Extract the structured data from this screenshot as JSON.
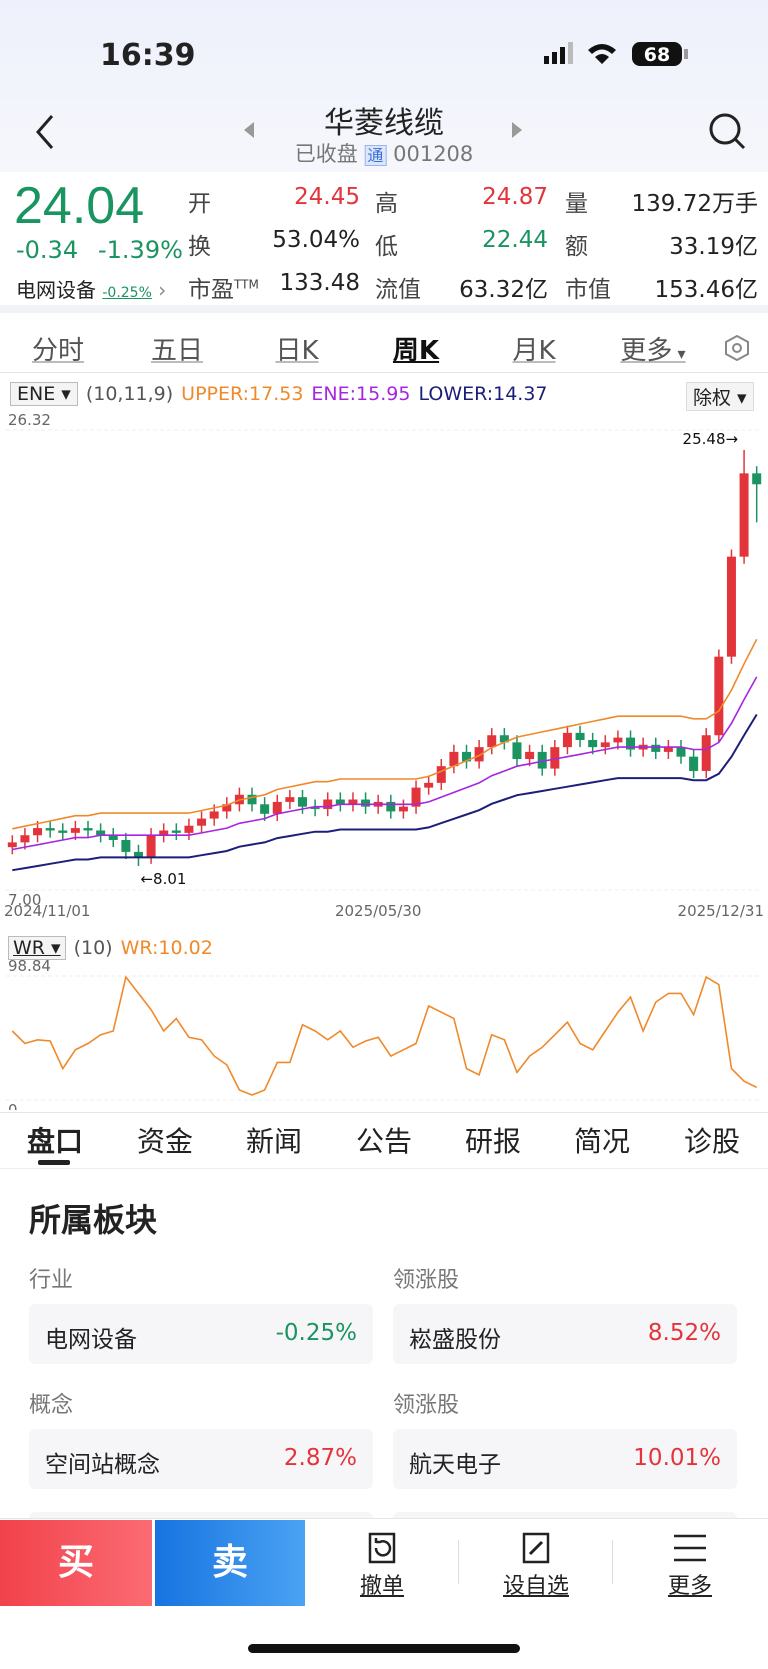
{
  "status_bar": {
    "time": "16:39",
    "battery": "68"
  },
  "header": {
    "title": "华菱线缆",
    "status": "已收盘",
    "badge": "通",
    "code": "001208"
  },
  "quote": {
    "price": "24.04",
    "change": "-0.34",
    "change_pct": "-1.39%",
    "sector": "电网设备",
    "sector_change": "-0.25%",
    "fields": [
      {
        "label": "开",
        "value": "24.45",
        "color": "#e2353b"
      },
      {
        "label": "高",
        "value": "24.87",
        "color": "#e2353b"
      },
      {
        "label": "量",
        "value": "139.72万手",
        "color": "#222"
      },
      {
        "label": "换",
        "value": "53.04%",
        "color": "#222"
      },
      {
        "label": "低",
        "value": "22.44",
        "color": "#1a9460"
      },
      {
        "label": "额",
        "value": "33.19亿",
        "color": "#222"
      },
      {
        "label": "市盈",
        "sup": "TTM",
        "value": "133.48",
        "color": "#222"
      },
      {
        "label": "流值",
        "value": "63.32亿",
        "color": "#222"
      },
      {
        "label": "市值",
        "value": "153.46亿",
        "color": "#222"
      }
    ]
  },
  "period_tabs": [
    "分时",
    "五日",
    "日K",
    "周K",
    "月K",
    "更多"
  ],
  "chart_data": [
    {
      "type": "candlestick",
      "indicator": "ENE",
      "params": "(10,11,9)",
      "adjust": "除权",
      "up_color": "#e2353b",
      "down_color": "#1a9460",
      "categories": [
        "2024/11/01",
        null,
        null,
        null,
        null,
        null,
        null,
        null,
        null,
        null,
        null,
        null,
        null,
        null,
        null,
        null,
        null,
        null,
        null,
        null,
        null,
        null,
        null,
        null,
        null,
        null,
        null,
        null,
        null,
        "2025/05/30",
        null,
        null,
        null,
        null,
        null,
        null,
        null,
        null,
        null,
        null,
        null,
        null,
        null,
        null,
        null,
        null,
        null,
        null,
        null,
        null,
        null,
        null,
        null,
        null,
        null,
        null,
        null,
        null,
        null,
        "2025/12/31"
      ],
      "open": [
        8.8,
        9.0,
        9.3,
        9.6,
        9.5,
        9.4,
        9.6,
        9.5,
        9.3,
        9.1,
        8.6,
        8.4,
        9.3,
        9.5,
        9.4,
        9.7,
        10.0,
        10.3,
        10.6,
        11.0,
        10.6,
        10.2,
        10.7,
        10.9,
        10.5,
        10.4,
        10.8,
        10.6,
        10.8,
        10.5,
        10.7,
        10.3,
        10.5,
        11.3,
        11.5,
        12.2,
        12.8,
        12.4,
        13.0,
        13.5,
        13.2,
        12.5,
        12.8,
        12.1,
        13.0,
        13.6,
        13.3,
        13.0,
        13.2,
        13.4,
        12.9,
        13.1,
        12.8,
        13.0,
        12.6,
        12.0,
        13.5,
        16.8,
        21.0,
        24.5
      ],
      "close": [
        9.0,
        9.3,
        9.6,
        9.5,
        9.4,
        9.6,
        9.5,
        9.3,
        9.1,
        8.6,
        8.4,
        9.3,
        9.5,
        9.4,
        9.7,
        10.0,
        10.3,
        10.6,
        11.0,
        10.6,
        10.2,
        10.7,
        10.9,
        10.5,
        10.4,
        10.8,
        10.6,
        10.8,
        10.5,
        10.7,
        10.3,
        10.5,
        11.3,
        11.5,
        12.2,
        12.8,
        12.4,
        13.0,
        13.5,
        13.2,
        12.5,
        12.8,
        12.1,
        13.0,
        13.6,
        13.3,
        13.0,
        13.2,
        13.4,
        12.9,
        13.1,
        12.8,
        13.0,
        12.6,
        12.0,
        13.5,
        16.8,
        21.0,
        24.5,
        24.04
      ],
      "high": [
        9.3,
        9.6,
        9.9,
        9.9,
        9.8,
        9.9,
        9.9,
        9.8,
        9.6,
        9.4,
        8.9,
        9.6,
        9.8,
        9.8,
        10.0,
        10.3,
        10.6,
        10.9,
        11.3,
        11.3,
        10.9,
        11.0,
        11.2,
        11.2,
        10.8,
        11.1,
        11.1,
        11.1,
        11.1,
        11.0,
        11.0,
        10.8,
        11.6,
        11.8,
        12.5,
        13.1,
        13.1,
        13.3,
        13.8,
        13.8,
        13.5,
        13.1,
        13.1,
        13.3,
        13.9,
        13.9,
        13.6,
        13.5,
        13.7,
        13.7,
        13.4,
        13.4,
        13.3,
        13.3,
        12.9,
        13.8,
        17.1,
        21.3,
        25.48,
        24.8
      ],
      "low": [
        8.5,
        8.7,
        9.0,
        9.2,
        9.1,
        9.1,
        9.2,
        9.0,
        8.8,
        8.3,
        8.01,
        8.1,
        9.0,
        9.1,
        9.1,
        9.4,
        9.7,
        10.0,
        10.3,
        10.3,
        9.9,
        9.9,
        10.4,
        10.2,
        10.1,
        10.1,
        10.3,
        10.3,
        10.2,
        10.2,
        10.0,
        10.0,
        10.2,
        11.0,
        11.2,
        11.9,
        12.1,
        12.1,
        12.7,
        12.9,
        12.2,
        12.2,
        11.8,
        11.8,
        12.7,
        13.0,
        12.7,
        12.7,
        12.9,
        12.6,
        12.6,
        12.5,
        12.5,
        12.3,
        11.7,
        11.7,
        13.2,
        16.5,
        20.7,
        22.44
      ],
      "series": [
        {
          "name": "UPPER:17.53",
          "color": "#f0892a",
          "values": [
            9.57,
            9.68,
            9.79,
            9.9,
            10.01,
            10.12,
            10.12,
            10.23,
            10.23,
            10.23,
            10.23,
            10.23,
            10.23,
            10.23,
            10.23,
            10.34,
            10.45,
            10.56,
            10.78,
            10.89,
            11,
            11.22,
            11.33,
            11.44,
            11.55,
            11.55,
            11.66,
            11.66,
            11.66,
            11.66,
            11.66,
            11.66,
            11.66,
            11.77,
            11.99,
            12.21,
            12.43,
            12.65,
            12.98,
            13.2,
            13.42,
            13.53,
            13.64,
            13.75,
            13.86,
            13.97,
            14.08,
            14.19,
            14.3,
            14.3,
            14.3,
            14.3,
            14.3,
            14.3,
            14.19,
            14.19,
            14.52,
            15.4,
            16.5,
            17.53
          ]
        },
        {
          "name": "ENE:15.95",
          "color": "#a626e0",
          "values": [
            8.7,
            8.8,
            8.9,
            9.0,
            9.1,
            9.2,
            9.2,
            9.3,
            9.3,
            9.3,
            9.3,
            9.3,
            9.3,
            9.3,
            9.3,
            9.4,
            9.5,
            9.6,
            9.8,
            9.9,
            10.0,
            10.2,
            10.3,
            10.4,
            10.5,
            10.5,
            10.6,
            10.6,
            10.6,
            10.6,
            10.6,
            10.6,
            10.6,
            10.7,
            10.9,
            11.1,
            11.3,
            11.5,
            11.8,
            12.0,
            12.2,
            12.3,
            12.4,
            12.5,
            12.6,
            12.7,
            12.8,
            12.9,
            13.0,
            13.0,
            13.0,
            13.0,
            13.0,
            13.0,
            12.9,
            12.9,
            13.2,
            14.0,
            15.0,
            15.95
          ]
        },
        {
          "name": "LOWER:14.37",
          "color": "#1c1f7a",
          "values": [
            7.83,
            7.92,
            8.01,
            8.1,
            8.19,
            8.28,
            8.28,
            8.37,
            8.37,
            8.37,
            8.37,
            8.37,
            8.37,
            8.37,
            8.37,
            8.46,
            8.55,
            8.64,
            8.82,
            8.91,
            9,
            9.18,
            9.27,
            9.36,
            9.45,
            9.45,
            9.54,
            9.54,
            9.54,
            9.54,
            9.54,
            9.54,
            9.54,
            9.63,
            9.81,
            9.99,
            10.17,
            10.35,
            10.62,
            10.8,
            10.98,
            11.07,
            11.16,
            11.25,
            11.34,
            11.43,
            11.52,
            11.61,
            11.7,
            11.7,
            11.7,
            11.7,
            11.7,
            11.7,
            11.61,
            11.61,
            11.88,
            12.6,
            13.5,
            14.37
          ]
        }
      ],
      "ylim": [
        7,
        26.32
      ],
      "yticks": [
        {
          "value": 7,
          "label": "7.00"
        },
        26.32
      ],
      "annotations": [
        {
          "text": "25.48→",
          "value": 25.48,
          "x": 58
        },
        {
          "text": "←8.01",
          "value": 8.01,
          "x": 10
        }
      ]
    },
    {
      "type": "line",
      "indicator": "WR",
      "params": "(10)",
      "series": [
        {
          "name": "WR:10.02",
          "color": "#f0892a",
          "values": [
            55,
            45,
            48,
            47,
            25,
            40,
            45,
            52,
            55,
            98,
            85,
            72,
            55,
            65,
            50,
            48,
            35,
            28,
            8,
            4,
            8,
            30,
            30,
            60,
            55,
            48,
            55,
            42,
            47,
            50,
            35,
            40,
            45,
            75,
            70,
            65,
            25,
            20,
            52,
            48,
            22,
            35,
            42,
            52,
            62,
            45,
            40,
            55,
            70,
            82,
            55,
            78,
            85,
            85,
            68,
            98,
            92,
            25,
            15,
            10.02
          ]
        }
      ],
      "ylim": [
        0,
        98.84
      ],
      "yticks": [
        0,
        98.84
      ]
    }
  ],
  "section_tabs": [
    "盘口",
    "资金",
    "新闻",
    "公告",
    "研报",
    "简况",
    "诊股"
  ],
  "sectors": {
    "title": "所属板块",
    "groups": [
      {
        "label": "行业",
        "name": "电网设备",
        "change": "-0.25%",
        "change_color": "#1a9460",
        "lead_label": "领涨股",
        "lead_name": "崧盛股份",
        "lead_change": "8.52%"
      },
      {
        "label": "概念",
        "name": "空间站概念",
        "change": "2.87%",
        "change_color": "#e2353b",
        "lead_label": "领涨股",
        "lead_name": "航天电子",
        "lead_change": "10.01%"
      }
    ]
  },
  "bottom_bar": {
    "buy": "买",
    "sell": "卖",
    "actions": [
      "撤单",
      "设自选",
      "更多"
    ]
  }
}
